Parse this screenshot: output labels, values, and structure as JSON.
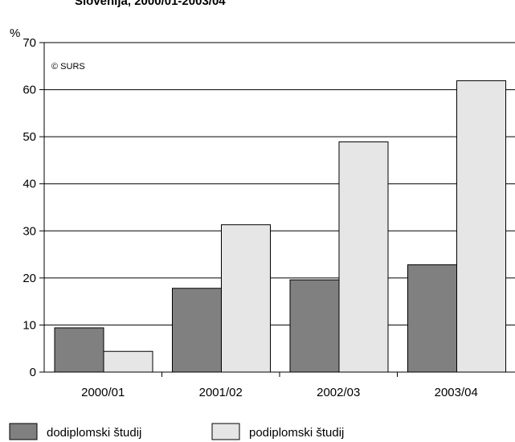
{
  "chart_data": {
    "type": "bar",
    "title": "Slovenija, 2000/01-2003/04",
    "ylabel": "%",
    "xlabel": "",
    "copyright": "© SURS",
    "categories": [
      "2000/01",
      "2001/02",
      "2002/03",
      "2003/04"
    ],
    "ylim": [
      0,
      70
    ],
    "yticks": [
      0,
      10,
      20,
      30,
      40,
      50,
      60,
      70
    ],
    "grid": true,
    "legend_position": "bottom",
    "series": [
      {
        "name": "dodiplomski študij",
        "color": "#808080",
        "values": [
          9.4,
          17.8,
          19.6,
          22.8
        ]
      },
      {
        "name": "podiplomski študij",
        "color": "#e6e6e6",
        "values": [
          4.4,
          31.3,
          48.9,
          61.9
        ]
      }
    ]
  }
}
